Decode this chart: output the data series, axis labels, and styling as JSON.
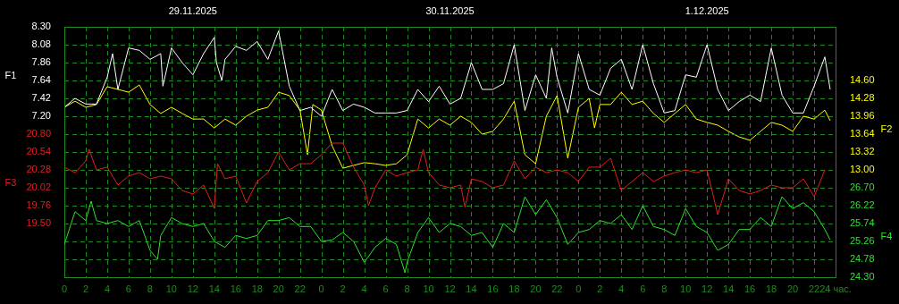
{
  "chart_data": [
    {
      "type": "line",
      "ylabel": "F1",
      "y2label": "F2",
      "xlim": [
        "2025-11-29T00:00",
        "2025-12-02T00:00"
      ],
      "xticks": [
        {
          "value": "2025-11-29T00:00",
          "label": "0"
        },
        {
          "value": "2025-11-29T02:00",
          "label": "2"
        },
        {
          "value": "2025-11-29T04:00",
          "label": "4"
        },
        {
          "value": "2025-11-29T06:00",
          "label": "6"
        },
        {
          "value": "2025-11-29T08:00",
          "label": "8"
        },
        {
          "value": "2025-11-29T10:00",
          "label": "10"
        },
        {
          "value": "2025-11-29T12:00",
          "label": "12"
        },
        {
          "value": "2025-11-29T14:00",
          "label": "14"
        },
        {
          "value": "2025-11-29T16:00",
          "label": "16"
        },
        {
          "value": "2025-11-29T18:00",
          "label": "18"
        },
        {
          "value": "2025-11-29T20:00",
          "label": "20"
        },
        {
          "value": "2025-11-29T22:00",
          "label": "22"
        },
        {
          "value": "2025-11-30T00:00",
          "label": "0"
        },
        {
          "value": "2025-11-30T02:00",
          "label": "2"
        },
        {
          "value": "2025-11-30T04:00",
          "label": "4"
        },
        {
          "value": "2025-11-30T06:00",
          "label": "6"
        },
        {
          "value": "2025-11-30T08:00",
          "label": "8"
        },
        {
          "value": "2025-11-30T10:00",
          "label": "10"
        },
        {
          "value": "2025-11-30T12:00",
          "label": "12"
        },
        {
          "value": "2025-11-30T14:00",
          "label": "14"
        },
        {
          "value": "2025-11-30T16:00",
          "label": "16"
        },
        {
          "value": "2025-11-30T18:00",
          "label": "18"
        },
        {
          "value": "2025-11-30T20:00",
          "label": "20"
        },
        {
          "value": "2025-11-30T22:00",
          "label": "22"
        },
        {
          "value": "2025-12-01T00:00",
          "label": "0"
        },
        {
          "value": "2025-12-01T02:00",
          "label": "2"
        },
        {
          "value": "2025-12-01T04:00",
          "label": "4"
        },
        {
          "value": "2025-12-01T06:00",
          "label": "6"
        },
        {
          "value": "2025-12-01T08:00",
          "label": "8"
        },
        {
          "value": "2025-12-01T10:00",
          "label": "10"
        },
        {
          "value": "2025-12-01T12:00",
          "label": "12"
        },
        {
          "value": "2025-12-01T14:00",
          "label": "14"
        },
        {
          "value": "2025-12-01T16:00",
          "label": "16"
        },
        {
          "value": "2025-12-01T18:00",
          "label": "18"
        },
        {
          "value": "2025-12-01T20:00",
          "label": "20"
        },
        {
          "value": "2025-12-01T22:00",
          "label": "22"
        },
        {
          "value": "2025-12-02T00:00",
          "label": "24 час."
        }
      ],
      "x2lim": [
        "2025-11-29T00:00",
        "2025-12-02T00:00"
      ],
      "x2ticks": [
        {
          "value": "2025-11-29T12:00",
          "label": "29.11.2025"
        },
        {
          "value": "2025-11-30T12:00",
          "label": "30.11.2025"
        },
        {
          "value": "2025-12-01T12:00",
          "label": "1.12.2025"
        }
      ],
      "ylim": [
        5.22,
        8.3
      ],
      "yticks": [
        {
          "value": 7.2,
          "label": "7.20"
        },
        7.42,
        7.64,
        7.86,
        8.08,
        {
          "value": 8.3,
          "label": "8.30"
        }
      ],
      "y2lim": [
        11.08,
        15.56
      ],
      "y2ticks": [
        {
          "value": 13,
          "label": "13.00"
        },
        13.32,
        13.64,
        13.96,
        14.28,
        {
          "value": 14.6,
          "label": "14.60"
        }
      ],
      "grid": true,
      "marker": "none",
      "line_style": "solid",
      "series": [
        {
          "color": "#ffffff",
          "x": [
            "2025-11-29T00:00",
            "2025-11-29T01:00",
            "2025-11-29T02:00",
            "2025-11-29T03:00",
            "2025-11-29T04:00",
            "2025-11-29T04:30",
            "2025-11-29T05:00",
            "2025-11-29T06:00",
            "2025-11-29T07:00",
            "2025-11-29T08:00",
            "2025-11-29T09:00",
            "2025-11-29T09:12",
            "2025-11-29T10:00",
            "2025-11-29T11:00",
            "2025-11-29T12:00",
            "2025-11-29T13:00",
            "2025-11-29T14:00",
            "2025-11-29T14:12",
            "2025-11-29T14:42",
            "2025-11-29T15:00",
            "2025-11-29T16:00",
            "2025-11-29T17:00",
            "2025-11-29T18:00",
            "2025-11-29T19:00",
            "2025-11-29T20:00",
            "2025-11-29T21:00",
            "2025-11-29T22:00",
            "2025-11-29T23:00",
            "2025-11-30T00:00",
            "2025-11-30T01:00",
            "2025-11-30T02:00",
            "2025-11-30T03:00",
            "2025-11-30T04:00",
            "2025-11-30T05:00",
            "2025-11-30T06:00",
            "2025-11-30T07:00",
            "2025-11-30T08:00",
            "2025-11-30T09:00",
            "2025-11-30T10:00",
            "2025-11-30T11:00",
            "2025-11-30T12:00",
            "2025-11-30T13:00",
            "2025-11-30T14:00",
            "2025-11-30T15:00",
            "2025-11-30T16:00",
            "2025-11-30T17:00",
            "2025-11-30T18:00",
            "2025-11-30T19:00",
            "2025-11-30T20:00",
            "2025-11-30T21:00",
            "2025-11-30T21:30",
            "2025-11-30T22:00",
            "2025-11-30T23:00",
            "2025-12-01T00:00",
            "2025-12-01T01:00",
            "2025-12-01T02:00",
            "2025-12-01T03:00",
            "2025-12-01T04:00",
            "2025-12-01T05:00",
            "2025-12-01T06:00",
            "2025-12-01T07:00",
            "2025-12-01T08:00",
            "2025-12-01T09:00",
            "2025-12-01T10:00",
            "2025-12-01T11:00",
            "2025-12-01T12:00",
            "2025-12-01T13:00",
            "2025-12-01T14:00",
            "2025-12-01T15:00",
            "2025-12-01T16:00",
            "2025-12-01T17:00",
            "2025-12-01T18:00",
            "2025-12-01T19:00",
            "2025-12-01T20:00",
            "2025-12-01T21:00",
            "2025-12-01T22:00",
            "2025-12-01T23:00",
            "2025-12-01T23:30"
          ],
          "values": [
            7.31,
            7.42,
            7.35,
            7.35,
            7.68,
            7.97,
            7.53,
            8.04,
            8.01,
            7.9,
            7.97,
            7.57,
            8.04,
            7.86,
            7.71,
            7.97,
            8.17,
            7.86,
            7.64,
            7.9,
            8.06,
            8.01,
            8.12,
            7.9,
            8.25,
            7.57,
            7.27,
            7.31,
            7.2,
            7.53,
            7.27,
            7.35,
            7.31,
            7.24,
            7.24,
            7.24,
            7.27,
            7.53,
            7.38,
            7.57,
            7.35,
            7.42,
            7.86,
            7.53,
            7.53,
            7.6,
            8.08,
            7.27,
            7.71,
            7.42,
            8.04,
            7.68,
            7.24,
            7.97,
            7.53,
            7.46,
            7.79,
            7.9,
            7.53,
            8.08,
            7.6,
            7.24,
            7.27,
            7.71,
            7.68,
            8.08,
            7.53,
            7.27,
            7.38,
            7.46,
            7.38,
            8.04,
            7.46,
            7.24,
            7.24,
            7.57,
            7.93,
            7.53
          ]
        },
        {
          "color": "#ffff00",
          "axis": "y2",
          "x": [
            "2025-11-29T00:00",
            "2025-11-29T01:00",
            "2025-11-29T02:00",
            "2025-11-29T03:00",
            "2025-11-29T04:00",
            "2025-11-29T05:00",
            "2025-11-29T06:00",
            "2025-11-29T07:00",
            "2025-11-29T08:00",
            "2025-11-29T09:00",
            "2025-11-29T10:00",
            "2025-11-29T11:00",
            "2025-11-29T12:00",
            "2025-11-29T13:00",
            "2025-11-29T14:00",
            "2025-11-29T15:00",
            "2025-11-29T16:00",
            "2025-11-29T17:00",
            "2025-11-29T18:00",
            "2025-11-29T19:00",
            "2025-11-29T20:00",
            "2025-11-29T21:00",
            "2025-11-29T22:00",
            "2025-11-29T22:42",
            "2025-11-29T23:12",
            "2025-11-30T00:00",
            "2025-11-30T01:00",
            "2025-11-30T02:00",
            "2025-11-30T03:00",
            "2025-11-30T04:00",
            "2025-11-30T05:00",
            "2025-11-30T06:00",
            "2025-11-30T07:00",
            "2025-11-30T08:00",
            "2025-11-30T09:00",
            "2025-11-30T10:00",
            "2025-11-30T11:00",
            "2025-11-30T12:00",
            "2025-11-30T13:00",
            "2025-11-30T14:00",
            "2025-11-30T15:00",
            "2025-11-30T16:00",
            "2025-11-30T17:00",
            "2025-11-30T18:00",
            "2025-11-30T19:00",
            "2025-11-30T20:00",
            "2025-11-30T21:00",
            "2025-11-30T22:00",
            "2025-11-30T23:00",
            "2025-12-01T00:00",
            "2025-12-01T01:00",
            "2025-12-01T01:30",
            "2025-12-01T02:00",
            "2025-12-01T03:00",
            "2025-12-01T04:00",
            "2025-12-01T05:00",
            "2025-12-01T06:00",
            "2025-12-01T07:00",
            "2025-12-01T08:00",
            "2025-12-01T09:00",
            "2025-12-01T10:00",
            "2025-12-01T11:00",
            "2025-12-01T12:00",
            "2025-12-01T13:00",
            "2025-12-01T14:00",
            "2025-12-01T15:00",
            "2025-12-01T16:00",
            "2025-12-01T17:00",
            "2025-12-01T18:00",
            "2025-12-01T19:00",
            "2025-12-01T20:00",
            "2025-12-01T21:00",
            "2025-12-01T22:00",
            "2025-12-01T23:00",
            "2025-12-01T23:30"
          ],
          "values": [
            14.12,
            14.23,
            14.12,
            14.17,
            14.49,
            14.44,
            14.39,
            14.52,
            14.17,
            14.01,
            14.12,
            14.01,
            13.91,
            13.91,
            13.75,
            13.91,
            13.8,
            13.96,
            14.07,
            14.12,
            14.39,
            14.33,
            14.07,
            13.27,
            14.17,
            14.07,
            13.43,
            13.03,
            13.08,
            13.13,
            13.11,
            13.08,
            13.11,
            13.27,
            13.91,
            13.75,
            13.91,
            13.8,
            13.96,
            13.85,
            13.64,
            13.69,
            13.91,
            14.23,
            13.27,
            13.11,
            13.96,
            14.33,
            13.21,
            14.12,
            14.28,
            13.75,
            14.17,
            14.17,
            14.39,
            14.17,
            14.23,
            14.01,
            13.85,
            14.01,
            14.17,
            13.91,
            13.85,
            13.8,
            13.69,
            13.59,
            13.53,
            13.69,
            13.85,
            13.8,
            13.69,
            13.96,
            13.91,
            14.07,
            13.88
          ]
        }
      ]
    },
    {
      "type": "line",
      "ylabel": "F3",
      "y2label": "F4",
      "tick_labels": "y",
      "xlim": [
        "2025-11-29T00:00",
        "2025-12-02T00:00"
      ],
      "ylim": [
        18.72,
        22.36
      ],
      "yticks": [
        {
          "value": 19.5,
          "label": "19.50"
        },
        19.76,
        20.02,
        20.28,
        20.54,
        {
          "value": 20.8,
          "label": "20.80"
        }
      ],
      "y2lim": [
        24.3,
        31.02
      ],
      "y2ticks": [
        {
          "value": 24.3,
          "label": "24.30"
        },
        24.78,
        25.26,
        25.74,
        26.22,
        {
          "value": 26.7,
          "label": "26.70"
        }
      ],
      "grid": "y",
      "marker": "none",
      "line_style": "solid",
      "series": [
        {
          "color": "#e02020",
          "x": [
            "2025-11-29T00:00",
            "2025-11-29T01:00",
            "2025-11-29T02:00",
            "2025-11-29T02:18",
            "2025-11-29T03:00",
            "2025-11-29T04:00",
            "2025-11-29T05:00",
            "2025-11-29T06:00",
            "2025-11-29T07:00",
            "2025-11-29T08:00",
            "2025-11-29T09:00",
            "2025-11-29T10:00",
            "2025-11-29T11:00",
            "2025-11-29T12:00",
            "2025-11-29T13:00",
            "2025-11-29T14:00",
            "2025-11-29T14:18",
            "2025-11-29T15:00",
            "2025-11-29T16:00",
            "2025-11-29T17:00",
            "2025-11-29T18:00",
            "2025-11-29T19:00",
            "2025-11-29T20:00",
            "2025-11-29T21:00",
            "2025-11-29T22:00",
            "2025-11-29T23:00",
            "2025-11-30T00:00",
            "2025-11-30T01:00",
            "2025-11-30T02:00",
            "2025-11-30T03:00",
            "2025-11-30T04:00",
            "2025-11-30T04:24",
            "2025-11-30T05:00",
            "2025-11-30T06:00",
            "2025-11-30T07:00",
            "2025-11-30T08:00",
            "2025-11-30T09:00",
            "2025-11-30T09:30",
            "2025-11-30T10:00",
            "2025-11-30T11:00",
            "2025-11-30T12:00",
            "2025-11-30T13:00",
            "2025-11-30T13:24",
            "2025-11-30T14:00",
            "2025-11-30T15:00",
            "2025-11-30T16:00",
            "2025-11-30T17:00",
            "2025-11-30T18:00",
            "2025-11-30T19:00",
            "2025-11-30T20:00",
            "2025-11-30T21:00",
            "2025-11-30T22:00",
            "2025-11-30T23:00",
            "2025-12-01T00:00",
            "2025-12-01T01:00",
            "2025-12-01T02:00",
            "2025-12-01T03:00",
            "2025-12-01T04:00",
            "2025-12-01T05:00",
            "2025-12-01T06:00",
            "2025-12-01T07:00",
            "2025-12-01T08:00",
            "2025-12-01T09:00",
            "2025-12-01T10:00",
            "2025-12-01T11:00",
            "2025-12-01T12:00",
            "2025-12-01T13:00",
            "2025-12-01T14:00",
            "2025-12-01T15:00",
            "2025-12-01T16:00",
            "2025-12-01T17:00",
            "2025-12-01T18:00",
            "2025-12-01T19:00",
            "2025-12-01T20:00",
            "2025-12-01T21:00",
            "2025-12-01T22:00",
            "2025-12-01T23:00"
          ],
          "values": [
            20.32,
            20.24,
            20.41,
            20.58,
            20.28,
            20.32,
            20.06,
            20.19,
            20.24,
            20.15,
            20.19,
            20.15,
            19.98,
            19.93,
            20.06,
            19.72,
            20.37,
            20.15,
            20.19,
            19.8,
            20.11,
            20.24,
            20.54,
            20.28,
            20.37,
            20.37,
            20.5,
            20.67,
            20.67,
            20.32,
            20.06,
            19.76,
            20.02,
            20.28,
            20.19,
            20.24,
            20.28,
            20.58,
            20.24,
            20.06,
            20.02,
            20.06,
            19.74,
            20.15,
            20.11,
            20.02,
            20.06,
            20.41,
            20.15,
            20.32,
            20.24,
            20.28,
            20.24,
            20.11,
            20.32,
            20.32,
            20.45,
            19.98,
            20.11,
            20.24,
            20.11,
            20.19,
            20.24,
            20.28,
            20.24,
            20.28,
            19.63,
            20.15,
            19.98,
            19.93,
            19.98,
            20.06,
            20.02,
            20.02,
            20.15,
            19.89,
            20.28
          ]
        },
        {
          "color": "#30e030",
          "axis": "y2",
          "x": [
            "2025-11-29T00:00",
            "2025-11-29T01:00",
            "2025-11-29T02:00",
            "2025-11-29T02:30",
            "2025-11-29T03:00",
            "2025-11-29T04:00",
            "2025-11-29T05:00",
            "2025-11-29T06:00",
            "2025-11-29T07:00",
            "2025-11-29T08:00",
            "2025-11-29T08:42",
            "2025-11-29T09:00",
            "2025-11-29T10:00",
            "2025-11-29T11:00",
            "2025-11-29T12:00",
            "2025-11-29T13:00",
            "2025-11-29T14:00",
            "2025-11-29T15:00",
            "2025-11-29T16:00",
            "2025-11-29T17:00",
            "2025-11-29T18:00",
            "2025-11-29T19:00",
            "2025-11-29T20:00",
            "2025-11-29T21:00",
            "2025-11-29T22:00",
            "2025-11-29T23:00",
            "2025-11-30T00:00",
            "2025-11-30T01:00",
            "2025-11-30T02:00",
            "2025-11-30T03:00",
            "2025-11-30T04:00",
            "2025-11-30T05:00",
            "2025-11-30T06:00",
            "2025-11-30T07:00",
            "2025-11-30T07:48",
            "2025-11-30T08:00",
            "2025-11-30T09:00",
            "2025-11-30T10:00",
            "2025-11-30T11:00",
            "2025-11-30T12:00",
            "2025-11-30T13:00",
            "2025-11-30T14:00",
            "2025-11-30T15:00",
            "2025-11-30T16:00",
            "2025-11-30T17:00",
            "2025-11-30T18:00",
            "2025-11-30T19:00",
            "2025-11-30T20:00",
            "2025-11-30T21:00",
            "2025-11-30T22:00",
            "2025-11-30T23:00",
            "2025-12-01T00:00",
            "2025-12-01T01:00",
            "2025-12-01T02:00",
            "2025-12-01T03:00",
            "2025-12-01T04:00",
            "2025-12-01T05:00",
            "2025-12-01T06:00",
            "2025-12-01T07:00",
            "2025-12-01T08:00",
            "2025-12-01T09:00",
            "2025-12-01T10:00",
            "2025-12-01T11:00",
            "2025-12-01T12:00",
            "2025-12-01T13:00",
            "2025-12-01T14:00",
            "2025-12-01T15:00",
            "2025-12-01T16:00",
            "2025-12-01T17:00",
            "2025-12-01T18:00",
            "2025-12-01T19:00",
            "2025-12-01T20:00",
            "2025-12-01T21:00",
            "2025-12-01T22:00",
            "2025-12-01T23:00",
            "2025-12-01T23:30"
          ],
          "values": [
            25.18,
            26.06,
            25.82,
            26.34,
            25.82,
            25.74,
            25.82,
            25.66,
            25.82,
            25.02,
            24.78,
            25.42,
            25.9,
            25.74,
            25.66,
            25.74,
            25.26,
            25.1,
            25.42,
            25.34,
            25.42,
            25.82,
            25.82,
            25.9,
            25.66,
            25.66,
            25.26,
            25.3,
            25.5,
            25.26,
            24.7,
            25.1,
            25.34,
            25.18,
            24.42,
            24.7,
            25.5,
            25.9,
            25.5,
            25.74,
            25.66,
            25.42,
            25.5,
            25.1,
            25.74,
            25.5,
            26.46,
            25.98,
            26.38,
            25.9,
            25.18,
            25.5,
            25.58,
            25.82,
            25.74,
            25.98,
            25.58,
            26.22,
            25.66,
            25.58,
            25.42,
            26.14,
            25.66,
            25.5,
            25.02,
            25.18,
            25.58,
            25.58,
            25.9,
            25.66,
            26.46,
            26.14,
            26.3,
            26.06,
            25.58,
            25.3
          ]
        }
      ]
    }
  ]
}
